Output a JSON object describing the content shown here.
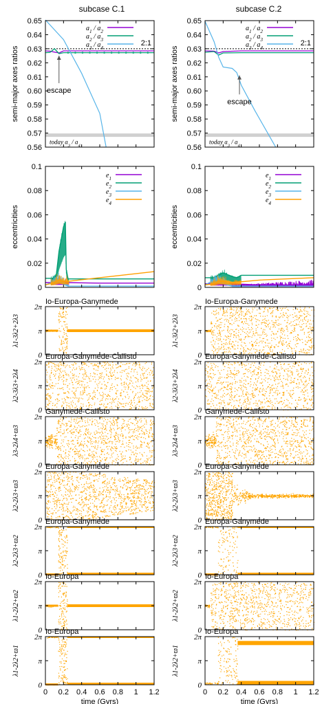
{
  "column_titles": [
    "subcase C.1",
    "subcase C.2"
  ],
  "chart_data": [
    {
      "type": "line",
      "panel": "semi-major axes ratios",
      "ylabel": "semi-major axes ratios",
      "ylim": [
        0.56,
        0.65
      ],
      "yticks": [
        "0.56",
        "0.57",
        "0.58",
        "0.59",
        "0.60",
        "0.61",
        "0.62",
        "0.63",
        "0.64",
        "0.65"
      ],
      "xlim": [
        0,
        1.2
      ],
      "grid": false,
      "legend_position": "top-right",
      "annotations": {
        "resonance_label": "2:1",
        "resonance_value": 0.63,
        "today_label": "today a3 / a4",
        "today_value": 0.5685,
        "escape_label": "escape"
      },
      "columns": [
        {
          "subcase": "subcase C.1",
          "escape_time": 0.15,
          "series": [
            {
              "name": "a1 / a2",
              "color": "#9400d3",
              "x": [
                0,
                0.05,
                0.1,
                0.15,
                0.2,
                0.4,
                0.6,
                0.8,
                1.0,
                1.2
              ],
              "y": [
                0.6285,
                0.6283,
                0.6276,
                0.627,
                0.6285,
                0.6285,
                0.6285,
                0.6285,
                0.6285,
                0.6285
              ]
            },
            {
              "name": "a2 / a3",
              "color": "#009e73",
              "x": [
                0,
                0.05,
                0.1,
                0.15,
                0.2,
                0.4,
                0.6,
                0.8,
                1.0,
                1.2
              ],
              "y": [
                0.6272,
                0.6274,
                0.63,
                0.6265,
                0.6272,
                0.6272,
                0.6272,
                0.6272,
                0.6272,
                0.6272
              ]
            },
            {
              "name": "a3 / a4",
              "color": "#56b4e9",
              "x": [
                0,
                0.2,
                0.4,
                0.6,
                0.67
              ],
              "y": [
                0.6505,
                0.6365,
                0.6125,
                0.584,
                0.56
              ]
            }
          ]
        },
        {
          "subcase": "subcase C.2",
          "escape_time": 0.38,
          "series": [
            {
              "name": "a1 / a2",
              "color": "#9400d3",
              "x": [
                0,
                0.1,
                0.15,
                0.2,
                0.4,
                0.6,
                0.8,
                1.0,
                1.2
              ],
              "y": [
                0.6285,
                0.6283,
                0.627,
                0.628,
                0.6285,
                0.6285,
                0.6285,
                0.6285,
                0.6285
              ]
            },
            {
              "name": "a2 / a3",
              "color": "#009e73",
              "x": [
                0,
                0.1,
                0.15,
                0.2,
                0.4,
                0.6,
                0.8,
                1.0,
                1.2
              ],
              "y": [
                0.6275,
                0.628,
                0.6255,
                0.627,
                0.6272,
                0.6272,
                0.6272,
                0.6272,
                0.6272
              ]
            },
            {
              "name": "a3 / a4",
              "color": "#56b4e9",
              "x": [
                0,
                0.1,
                0.15,
                0.2,
                0.3,
                0.35,
                0.4,
                0.55,
                0.7,
                0.78
              ],
              "y": [
                0.6495,
                0.635,
                0.624,
                0.617,
                0.616,
                0.613,
                0.604,
                0.586,
                0.569,
                0.56
              ]
            }
          ]
        }
      ]
    },
    {
      "type": "line",
      "panel": "eccentricities",
      "ylabel": "eccentricities",
      "ylim": [
        0,
        0.1
      ],
      "yticks": [
        "0.00",
        "0.02",
        "0.04",
        "0.06",
        "0.08",
        "0.10"
      ],
      "xlim": [
        0,
        1.2
      ],
      "grid": false,
      "legend_position": "top-right",
      "columns": [
        {
          "subcase": "subcase C.1",
          "series": [
            {
              "name": "e1",
              "color": "#9400d3",
              "x": [
                0,
                0.2,
                0.6,
                1.2
              ],
              "y": [
                0.004,
                0.004,
                0.0035,
                0.0035
              ]
            },
            {
              "name": "e2",
              "color": "#009e73",
              "x": [
                0,
                0.08,
                0.12,
                0.15,
                0.18,
                0.2,
                0.22,
                0.23,
                0.25,
                0.6,
                1.2
              ],
              "y": [
                0.0075,
                0.0075,
                0.01,
                0.03,
                0.042,
                0.05,
                0.054,
                0.015,
                0.007,
                0.007,
                0.007
              ]
            },
            {
              "name": "e3",
              "color": "#56b4e9",
              "x": [
                0,
                0.1,
                0.15,
                0.2,
                0.25,
                1.2
              ],
              "y": [
                0.002,
                0.005,
                0.008,
                0.004,
                0.001,
                0.001
              ]
            },
            {
              "name": "e4",
              "color": "#ff9f00",
              "x": [
                0,
                0.1,
                0.15,
                0.2,
                0.25,
                0.6,
                1.2
              ],
              "y": [
                0.002,
                0.004,
                0.006,
                0.005,
                0.005,
                0.008,
                0.013
              ]
            }
          ]
        },
        {
          "subcase": "subcase C.2",
          "series": [
            {
              "name": "e1",
              "color": "#9400d3",
              "x": [
                0,
                0.3,
                0.6,
                1.2
              ],
              "y": [
                0.003,
                0.003,
                0.002,
                0.002
              ]
            },
            {
              "name": "e2",
              "color": "#009e73",
              "x": [
                0,
                0.1,
                0.15,
                0.2,
                0.3,
                0.35,
                0.4,
                0.6,
                1.2
              ],
              "y": [
                0.008,
                0.008,
                0.01,
                0.012,
                0.009,
                0.008,
                0.01,
                0.01,
                0.01
              ]
            },
            {
              "name": "e3",
              "color": "#56b4e9",
              "x": [
                0,
                0.1,
                0.15,
                0.2,
                0.3,
                1.2
              ],
              "y": [
                0.002,
                0.006,
                0.007,
                0.005,
                0.001,
                0.001
              ]
            },
            {
              "name": "e4",
              "color": "#ff9f00",
              "x": [
                0,
                0.1,
                0.15,
                0.2,
                0.3,
                0.6,
                1.2
              ],
              "y": [
                0.002,
                0.003,
                0.005,
                0.005,
                0.004,
                0.006,
                0.008
              ]
            }
          ]
        }
      ]
    },
    {
      "type": "scatter",
      "panel": "resonant angles",
      "color": "#ffa500",
      "yticks": [
        "0",
        "π",
        "2π"
      ],
      "xticks": [
        "0",
        "0.2",
        "0.4",
        "0.6",
        "0.8",
        "1",
        "1.2"
      ],
      "xlim": [
        0,
        1.2
      ],
      "xlabel": "time (Gyrs)",
      "rows": [
        {
          "title": "Io-Europa-Ganymede",
          "ylabel": "λ1-3λ2+2λ3",
          "columns": [
            {
              "subcase": "subcase C.1",
              "regime": "libration",
              "center": "π",
              "onset": 0.14,
              "transition_end": 0.24
            },
            {
              "subcase": "subcase C.2",
              "regime": "circulation",
              "center": "π",
              "onset": 0.06,
              "transition_end": 0.08
            }
          ]
        },
        {
          "title": "Europa-Ganymede-Callisto",
          "ylabel": "λ2-3λ3+2λ4",
          "columns": [
            {
              "subcase": "subcase C.1",
              "regime": "circulation",
              "center": "π",
              "onset": 0.0,
              "transition_end": 0.0
            },
            {
              "subcase": "subcase C.2",
              "regime": "circulation",
              "center": "π",
              "onset": 0.0,
              "transition_end": 0.0
            }
          ]
        },
        {
          "title": "Ganymede-Callisto",
          "ylabel": "λ3-2λ4+ϖ3",
          "columns": [
            {
              "subcase": "subcase C.1",
              "regime": "libration-then-circulation",
              "center": "π",
              "onset": 0.12,
              "transition_end": 0.2
            },
            {
              "subcase": "subcase C.2",
              "regime": "libration-then-circulation",
              "center": "π",
              "onset": 0.12,
              "transition_end": 0.2
            }
          ]
        },
        {
          "title": "Europa-Ganymede",
          "ylabel": "λ2-2λ3+ϖ3",
          "columns": [
            {
              "subcase": "subcase C.1",
              "regime": "circulation-narrowing",
              "center": "π",
              "onset": 0.1,
              "transition_end": 0.4
            },
            {
              "subcase": "subcase C.2",
              "regime": "circulation-then-libration",
              "center": "π",
              "onset": 0.3,
              "transition_end": 0.5
            }
          ]
        },
        {
          "title": "Europa-Ganymede",
          "ylabel": "λ2-2λ3+ϖ2",
          "columns": [
            {
              "subcase": "subcase C.1",
              "regime": "libration",
              "center": "0",
              "onset": 0.14,
              "transition_end": 0.24
            },
            {
              "subcase": "subcase C.2",
              "regime": "libration",
              "center": "0",
              "onset": 0.14,
              "transition_end": 0.36
            }
          ]
        },
        {
          "title": "Io-Europa",
          "ylabel": "λ1-2λ2+ϖ2",
          "columns": [
            {
              "subcase": "subcase C.1",
              "regime": "libration",
              "center": "π",
              "onset": 0.14,
              "transition_end": 0.24
            },
            {
              "subcase": "subcase C.2",
              "regime": "circulation",
              "center": "π",
              "onset": 0.06,
              "transition_end": 0.08
            }
          ]
        },
        {
          "title": "Io-Europa",
          "ylabel": "λ1-2λ2+ϖ1",
          "columns": [
            {
              "subcase": "subcase C.1",
              "regime": "libration",
              "center": "0",
              "onset": 0.14,
              "transition_end": 0.24
            },
            {
              "subcase": "subcase C.2",
              "regime": "bimodal-libration",
              "center": "0",
              "onset": 0.14,
              "transition_end": 0.36
            }
          ]
        }
      ]
    }
  ],
  "shared": {
    "semi_ytick_labels": [
      "0.56",
      "0.57",
      "0.58",
      "0.59",
      "0.60",
      "0.61",
      "0.62",
      "0.63",
      "0.64",
      "0.65"
    ],
    "ecc_ytick_labels": [
      "0",
      "0.02",
      "0.04",
      "0.06",
      "0.08",
      "0.1"
    ],
    "xtick_labels": [
      "0",
      "0.2",
      "0.4",
      "0.6",
      "0.8",
      "1",
      "1.2"
    ]
  }
}
